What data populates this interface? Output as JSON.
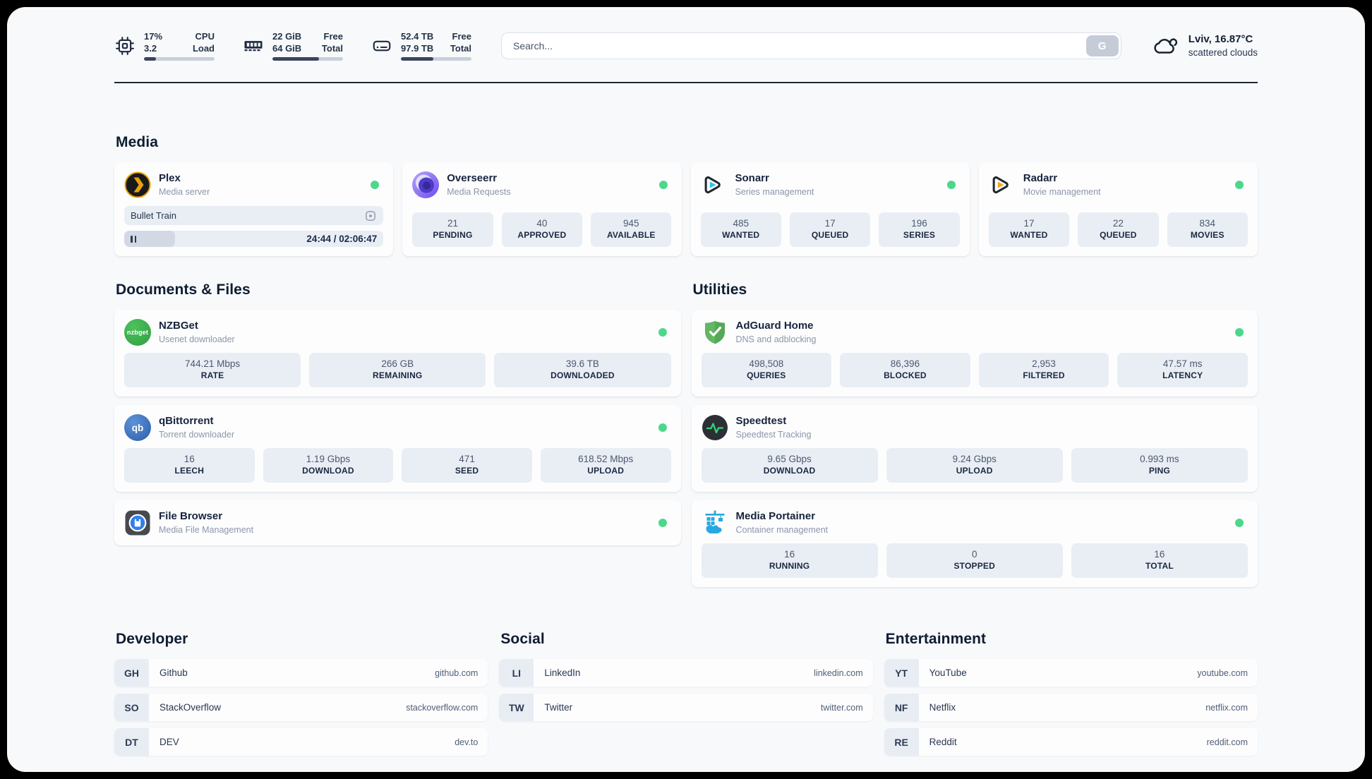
{
  "colors": {
    "status_online": "#4cd88a"
  },
  "header": {
    "stats": [
      {
        "name": "cpu",
        "value1": "17%",
        "value2": "3.2",
        "label1": "CPU",
        "label2": "Load",
        "progress_pct": 17
      },
      {
        "name": "memory",
        "value1": "22 GiB",
        "value2": "64 GiB",
        "label1": "Free",
        "label2": "Total",
        "progress_pct": 66
      },
      {
        "name": "storage",
        "value1": "52.4 TB",
        "value2": "97.9 TB",
        "label1": "Free",
        "label2": "Total",
        "progress_pct": 46
      }
    ],
    "search": {
      "placeholder": "Search...",
      "engine_button": "G"
    },
    "weather": {
      "title": "Lviv, 16.87°C",
      "subtitle": "scattered clouds"
    }
  },
  "media": {
    "title": "Media",
    "plex": {
      "name": "Plex",
      "subtitle": "Media server",
      "now_playing": "Bullet Train",
      "time": "24:44 / 02:06:47",
      "progress_pct": 19.5
    },
    "overseerr": {
      "name": "Overseerr",
      "subtitle": "Media Requests",
      "stats": [
        {
          "value": "21",
          "label": "PENDING"
        },
        {
          "value": "40",
          "label": "APPROVED"
        },
        {
          "value": "945",
          "label": "AVAILABLE"
        }
      ]
    },
    "sonarr": {
      "name": "Sonarr",
      "subtitle": "Series management",
      "stats": [
        {
          "value": "485",
          "label": "WANTED"
        },
        {
          "value": "17",
          "label": "QUEUED"
        },
        {
          "value": "196",
          "label": "SERIES"
        }
      ]
    },
    "radarr": {
      "name": "Radarr",
      "subtitle": "Movie management",
      "stats": [
        {
          "value": "17",
          "label": "WANTED"
        },
        {
          "value": "22",
          "label": "QUEUED"
        },
        {
          "value": "834",
          "label": "MOVIES"
        }
      ]
    }
  },
  "documents": {
    "title": "Documents & Files",
    "nzbget": {
      "name": "NZBGet",
      "subtitle": "Usenet downloader",
      "stats": [
        {
          "value": "744.21 Mbps",
          "label": "RATE"
        },
        {
          "value": "266 GB",
          "label": "REMAINING"
        },
        {
          "value": "39.6 TB",
          "label": "DOWNLOADED"
        }
      ]
    },
    "qbittorrent": {
      "name": "qBittorrent",
      "subtitle": "Torrent downloader",
      "stats": [
        {
          "value": "16",
          "label": "LEECH"
        },
        {
          "value": "1.19 Gbps",
          "label": "DOWNLOAD"
        },
        {
          "value": "471",
          "label": "SEED"
        },
        {
          "value": "618.52 Mbps",
          "label": "UPLOAD"
        }
      ]
    },
    "filebrowser": {
      "name": "File Browser",
      "subtitle": "Media File Management"
    }
  },
  "utilities": {
    "title": "Utilities",
    "adguard": {
      "name": "AdGuard Home",
      "subtitle": "DNS and adblocking",
      "stats": [
        {
          "value": "498,508",
          "label": "QUERIES"
        },
        {
          "value": "86,396",
          "label": "BLOCKED"
        },
        {
          "value": "2,953",
          "label": "FILTERED"
        },
        {
          "value": "47.57 ms",
          "label": "LATENCY"
        }
      ]
    },
    "speedtest": {
      "name": "Speedtest",
      "subtitle": "Speedtest Tracking",
      "stats": [
        {
          "value": "9.65 Gbps",
          "label": "DOWNLOAD"
        },
        {
          "value": "9.24 Gbps",
          "label": "UPLOAD"
        },
        {
          "value": "0.993 ms",
          "label": "PING"
        }
      ]
    },
    "portainer": {
      "name": "Media Portainer",
      "subtitle": "Container management",
      "stats": [
        {
          "value": "16",
          "label": "RUNNING"
        },
        {
          "value": "0",
          "label": "STOPPED"
        },
        {
          "value": "16",
          "label": "TOTAL"
        }
      ]
    }
  },
  "bookmarks": {
    "developer": {
      "title": "Developer",
      "links": [
        {
          "abbr": "GH",
          "name": "Github",
          "url": "github.com"
        },
        {
          "abbr": "SO",
          "name": "StackOverflow",
          "url": "stackoverflow.com"
        },
        {
          "abbr": "DT",
          "name": "DEV",
          "url": "dev.to"
        }
      ]
    },
    "social": {
      "title": "Social",
      "links": [
        {
          "abbr": "LI",
          "name": "LinkedIn",
          "url": "linkedin.com"
        },
        {
          "abbr": "TW",
          "name": "Twitter",
          "url": "twitter.com"
        }
      ]
    },
    "entertainment": {
      "title": "Entertainment",
      "links": [
        {
          "abbr": "YT",
          "name": "YouTube",
          "url": "youtube.com"
        },
        {
          "abbr": "NF",
          "name": "Netflix",
          "url": "netflix.com"
        },
        {
          "abbr": "RE",
          "name": "Reddit",
          "url": "reddit.com"
        }
      ]
    }
  },
  "icons": {
    "nzbget_logo_text": "nzbget",
    "qbittorrent_logo_text": "qb"
  }
}
